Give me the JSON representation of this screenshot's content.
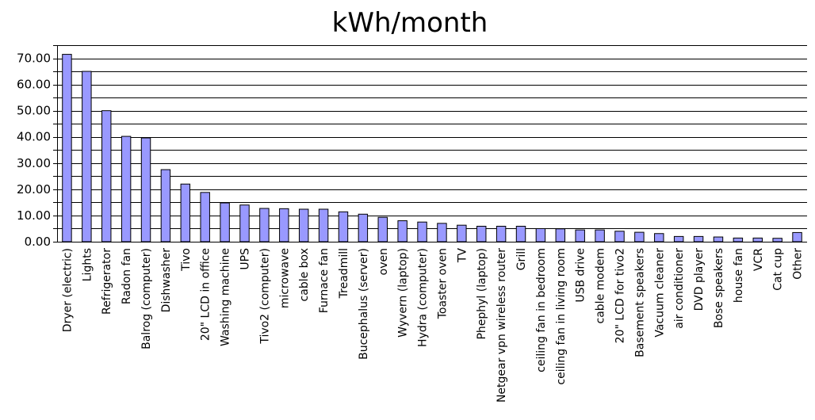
{
  "chart_data": {
    "type": "bar",
    "title": "kWh/month",
    "xlabel": "",
    "ylabel": "",
    "ylim": [
      0,
      75
    ],
    "yticks": [
      "0.00",
      "10.00",
      "20.00",
      "30.00",
      "40.00",
      "50.00",
      "60.00",
      "70.00"
    ],
    "grid": true,
    "bar_color": "#9999ff",
    "categories": [
      "Dryer (electric)",
      "Lights",
      "Refrigerator",
      "Radon fan",
      "Balrog (computer)",
      "Dishwasher",
      "Tivo",
      "20\" LCD in office",
      "Washing machine",
      "UPS",
      "Tivo2 (computer)",
      "microwave",
      "cable box",
      "Furnace fan",
      "Treadmill",
      "Bucephalus (server)",
      "oven",
      "Wyvern (laptop)",
      "Hydra (computer)",
      "Toaster oven",
      "TV",
      "Phephyl (laptop)",
      "Netgear vpn wireless router",
      "Grill",
      "ceiling fan in bedroom",
      "ceiling fan in living room",
      "USB drive",
      "cable modem",
      "20\" LCD for tivo2",
      "Basement speakers",
      "Vacuum cleaner",
      "air conditioner",
      "DVD player",
      "Bose speakers",
      "house fan",
      "VCR",
      "Cat cup",
      "Other"
    ],
    "values": [
      71.5,
      65.0,
      50.0,
      40.2,
      39.6,
      27.5,
      22.0,
      18.8,
      14.8,
      14.0,
      12.7,
      12.6,
      12.4,
      12.4,
      11.4,
      10.5,
      9.3,
      8.0,
      7.5,
      7.0,
      6.3,
      5.9,
      5.9,
      5.9,
      5.0,
      4.9,
      4.5,
      4.5,
      4.0,
      3.6,
      3.1,
      2.0,
      2.0,
      1.8,
      1.4,
      1.4,
      1.3,
      3.5
    ]
  }
}
